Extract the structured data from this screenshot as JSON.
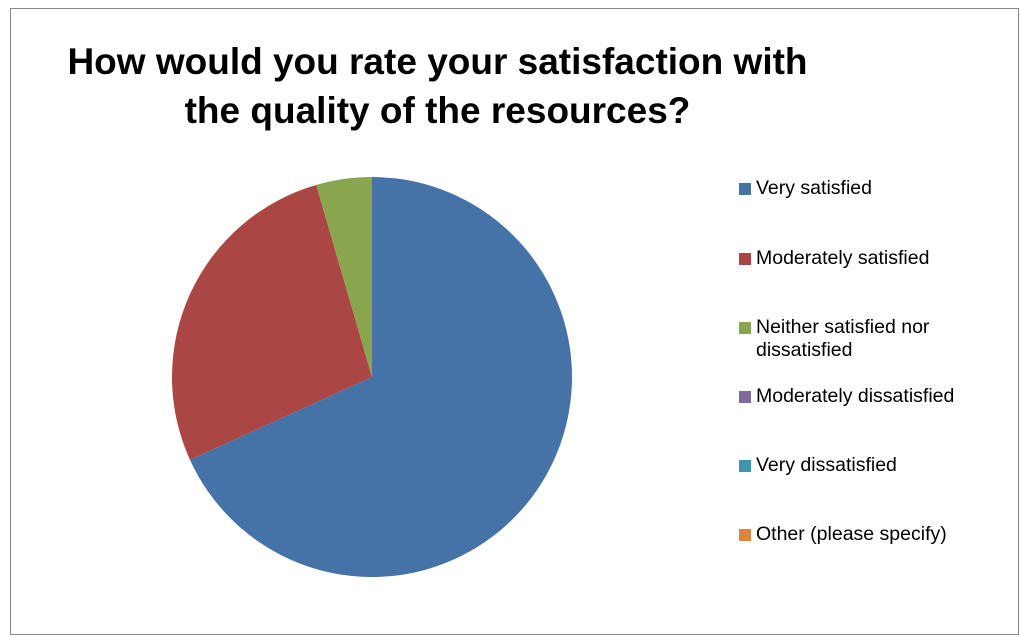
{
  "chart_data": {
    "type": "pie",
    "title": "How would you rate your satisfaction with the quality of the resources?",
    "title_lines": [
      "How would you rate your satisfaction with",
      "the quality of the resources?"
    ],
    "categories": [
      "Very satisfied",
      "Moderately satisfied",
      "Neither satisfied nor dissatisfied",
      "Moderately dissatisfied",
      "Very dissatisfied",
      "Other (please specify)"
    ],
    "legend_lines": [
      [
        "Very satisfied"
      ],
      [
        "Moderately satisfied"
      ],
      [
        "Neither satisfied nor",
        "dissatisfied"
      ],
      [
        "Moderately dissatisfied"
      ],
      [
        "Very dissatisfied"
      ],
      [
        "Other (please specify)"
      ]
    ],
    "values": [
      68.2,
      27.3,
      4.5,
      0,
      0,
      0
    ],
    "colors": [
      "#4572A7",
      "#AA4643",
      "#89A54E",
      "#80699B",
      "#3D96AE",
      "#DB843D"
    ],
    "legend_position": "right",
    "grid": false
  }
}
